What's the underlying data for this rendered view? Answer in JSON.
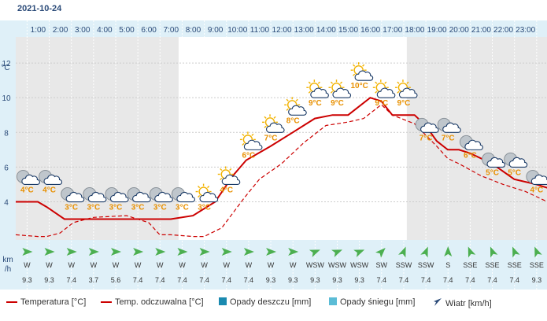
{
  "date": "2021-10-24",
  "colors": {
    "temp": "#cc0000",
    "feel": "#cc0000",
    "rain": "#1a8ab0",
    "snow": "#5bbcd6",
    "wind": "#2a4a78",
    "night_bg": "#e8e8e8",
    "day_bg": "#ffffff",
    "header_bg": "#dff0f8",
    "wind_row_bg": "#dff0f8",
    "axis_label": "#2a4a78",
    "temp_label": "#e89000"
  },
  "chart_data": {
    "type": "line",
    "x": [
      "1:00",
      "2:00",
      "3:00",
      "4:00",
      "5:00",
      "6:00",
      "7:00",
      "8:00",
      "9:00",
      "10:00",
      "11:00",
      "12:00",
      "13:00",
      "14:00",
      "15:00",
      "16:00",
      "17:00",
      "18:00",
      "19:00",
      "20:00",
      "21:00",
      "22:00",
      "23:00"
    ],
    "y_unit": "°C",
    "y_ticks": [
      4,
      6,
      8,
      10,
      12
    ],
    "ylim": [
      1.8,
      13.5
    ],
    "series": [
      {
        "name": "Temperatura [°C]",
        "style": "solid",
        "points": [
          [
            0.0,
            4.0
          ],
          [
            1.0,
            4.0
          ],
          [
            1.4,
            3.7
          ],
          [
            2.2,
            3.0
          ],
          [
            3.5,
            3.0
          ],
          [
            7.0,
            3.0
          ],
          [
            8.0,
            3.2
          ],
          [
            9.0,
            4.0
          ],
          [
            9.8,
            5.5
          ],
          [
            10.4,
            6.4
          ],
          [
            11.5,
            7.2
          ],
          [
            12.5,
            8.0
          ],
          [
            13.5,
            8.8
          ],
          [
            14.3,
            9.0
          ],
          [
            15.0,
            9.0
          ],
          [
            16.0,
            10.0
          ],
          [
            16.5,
            9.8
          ],
          [
            17.0,
            9.0
          ],
          [
            18.0,
            9.0
          ],
          [
            18.5,
            8.4
          ],
          [
            19.0,
            7.5
          ],
          [
            19.5,
            7.0
          ],
          [
            20.0,
            7.0
          ],
          [
            20.5,
            6.8
          ],
          [
            21.5,
            6.2
          ],
          [
            22.5,
            5.3
          ],
          [
            23.5,
            5.0
          ],
          [
            24.0,
            4.8
          ],
          [
            25.0,
            4.2
          ],
          [
            25.7,
            4.0
          ]
        ]
      },
      {
        "name": "Temp. odczuwalna [°C]",
        "style": "dashed",
        "points": [
          [
            0.0,
            2.1
          ],
          [
            1.0,
            2.0
          ],
          [
            1.4,
            2.0
          ],
          [
            2.0,
            2.2
          ],
          [
            2.6,
            2.8
          ],
          [
            3.5,
            3.1
          ],
          [
            5.0,
            3.2
          ],
          [
            6.0,
            2.8
          ],
          [
            6.5,
            2.1
          ],
          [
            7.0,
            2.1
          ],
          [
            8.0,
            2.0
          ],
          [
            8.5,
            2.0
          ],
          [
            9.3,
            2.5
          ],
          [
            10.3,
            4.2
          ],
          [
            11.0,
            5.3
          ],
          [
            12.0,
            6.2
          ],
          [
            13.0,
            7.4
          ],
          [
            14.0,
            8.4
          ],
          [
            15.0,
            8.6
          ],
          [
            15.7,
            8.8
          ],
          [
            16.5,
            9.6
          ],
          [
            17.0,
            9.0
          ],
          [
            18.0,
            8.5
          ],
          [
            19.0,
            7.2
          ],
          [
            19.5,
            6.5
          ],
          [
            20.0,
            6.2
          ],
          [
            21.0,
            5.5
          ],
          [
            22.0,
            5.0
          ],
          [
            23.0,
            4.6
          ],
          [
            24.0,
            4.0
          ],
          [
            25.0,
            3.3
          ],
          [
            25.7,
            3.0
          ]
        ]
      }
    ],
    "temp_labels": [
      "4°C",
      "4°C",
      "3°C",
      "3°C",
      "3°C",
      "3°C",
      "3°C",
      "3°C",
      "3°C",
      "4°C",
      "6°C",
      "7°C",
      "8°C",
      "9°C",
      "9°C",
      "10°C",
      "9°C",
      "9°C",
      "7°C",
      "7°C",
      "6°C",
      "5°C",
      "5°C",
      "4°C"
    ],
    "temp_label_values": [
      4,
      4,
      3,
      3,
      3,
      3,
      3,
      3,
      3,
      4,
      6,
      7,
      8,
      9,
      9,
      10,
      9,
      9,
      7,
      7,
      6,
      5,
      5,
      4
    ],
    "weather_icons": [
      "cloudy-night",
      "cloudy-night",
      "cloudy-night",
      "cloudy-night",
      "cloudy-night",
      "cloudy-night",
      "cloudy-night",
      "cloudy-night",
      "partly-cloudy-sun",
      "partly-cloudy-sun",
      "partly-cloudy-sun",
      "partly-cloudy-sun",
      "partly-cloudy-sun",
      "partly-cloudy-sun",
      "partly-cloudy-sun",
      "partly-cloudy-sun",
      "partly-cloudy-sun",
      "partly-cloudy-sun",
      "cloudy-night",
      "cloudy-night",
      "cloudy-night",
      "cloudy-night",
      "cloudy-night",
      "cloudy-night"
    ],
    "night_ranges": [
      [
        0,
        7.35
      ],
      [
        17.65,
        25.7
      ]
    ]
  },
  "wind": {
    "unit_line1": "km",
    "unit_line2": "/h",
    "directions": [
      "W",
      "W",
      "W",
      "W",
      "W",
      "W",
      "W",
      "W",
      "W",
      "W",
      "W",
      "W",
      "W",
      "WSW",
      "WSW",
      "WSW",
      "SW",
      "SSW",
      "SSW",
      "S",
      "SSE",
      "SSE",
      "SSE",
      "SSE"
    ],
    "speeds": [
      "9.3",
      "9.3",
      "7.4",
      "3.7",
      "5.6",
      "7.4",
      "7.4",
      "7.4",
      "7.4",
      "7.4",
      "7.4",
      "9.3",
      "9.3",
      "9.3",
      "9.3",
      "9.3",
      "7.4",
      "7.4",
      "7.4",
      "7.4",
      "7.4",
      "7.4",
      "7.4",
      "9.3"
    ],
    "arrow_deg": [
      90,
      90,
      90,
      90,
      90,
      90,
      90,
      90,
      90,
      90,
      90,
      90,
      90,
      68,
      68,
      68,
      45,
      22,
      22,
      0,
      -22,
      -22,
      -22,
      -22
    ]
  },
  "legend": {
    "temp": "Temperatura [°C]",
    "feel": "Temp. odczuwalna [°C]",
    "rain": "Opady deszczu [mm]",
    "snow": "Opady śniegu [mm]",
    "wind": "Wiatr [km/h]"
  }
}
